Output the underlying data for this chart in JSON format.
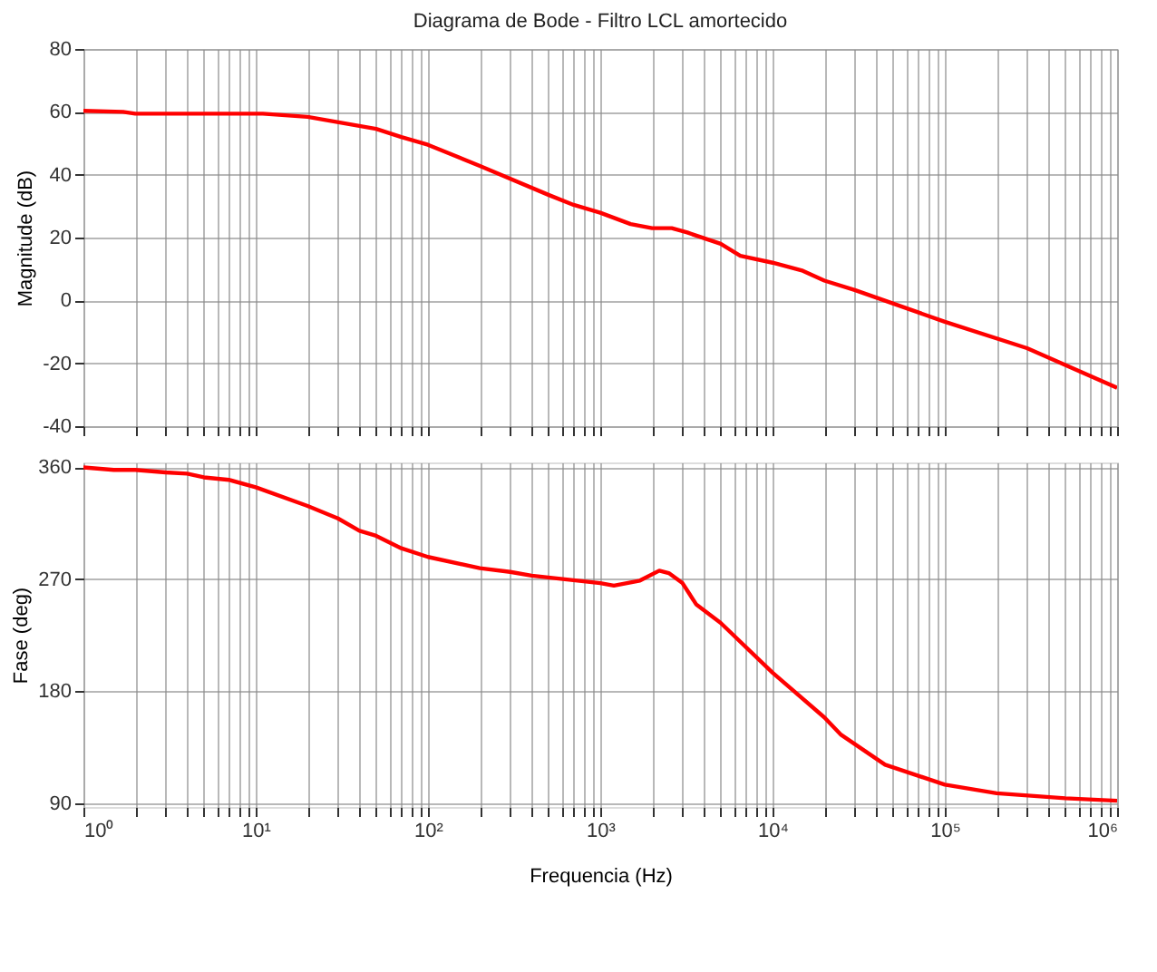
{
  "chart_data": [
    {
      "type": "line",
      "title": "Diagrama de Bode - Filtro LCL amortecido",
      "ylabel": "Magnitude (dB)",
      "log": "x",
      "grid": true,
      "tick_labels": "y",
      "line_style": "solid",
      "marker": "none",
      "x": [
        1,
        1.7,
        2,
        10,
        11,
        20,
        50,
        70,
        100,
        200,
        500,
        700,
        1000,
        1500,
        2000,
        2600,
        3200,
        5000,
        6500,
        10000,
        15000,
        20000,
        30000,
        100000,
        300000,
        1000000
      ],
      "series": [
        {
          "color": "#ff0000",
          "values": [
            60.3,
            60,
            59.4,
            59.4,
            59.4,
            58.4,
            54.6,
            52,
            49.5,
            42.8,
            33.6,
            30.4,
            27.9,
            24.3,
            23,
            23,
            21.6,
            18,
            14.2,
            12,
            9.4,
            6.3,
            3.3,
            -6.8,
            -15.2,
            -27.8
          ]
        }
      ],
      "xlim": [
        1,
        1000000
      ],
      "ylim": [
        -40,
        80
      ],
      "yticks": [
        -40,
        -20,
        0,
        20,
        40,
        60,
        80
      ],
      "xticks": [
        {
          "value": 1,
          "label": null
        },
        {
          "value": 2,
          "label": null
        },
        {
          "value": 3,
          "label": null
        },
        {
          "value": 4,
          "label": null
        },
        {
          "value": 5,
          "label": null
        },
        {
          "value": 6,
          "label": null
        },
        {
          "value": 7,
          "label": null
        },
        {
          "value": 8,
          "label": null
        },
        {
          "value": 9,
          "label": null
        },
        {
          "value": 10,
          "label": null
        },
        {
          "value": 20,
          "label": null
        },
        {
          "value": 30,
          "label": null
        },
        {
          "value": 40,
          "label": null
        },
        {
          "value": 50,
          "label": null
        },
        {
          "value": 60,
          "label": null
        },
        {
          "value": 70,
          "label": null
        },
        {
          "value": 80,
          "label": null
        },
        {
          "value": 90,
          "label": null
        },
        {
          "value": 100,
          "label": null
        },
        {
          "value": 200,
          "label": null
        },
        {
          "value": 300,
          "label": null
        },
        {
          "value": 400,
          "label": null
        },
        {
          "value": 500,
          "label": null
        },
        {
          "value": 600,
          "label": null
        },
        {
          "value": 700,
          "label": null
        },
        {
          "value": 800,
          "label": null
        },
        {
          "value": 900,
          "label": null
        },
        {
          "value": 1000,
          "label": null
        },
        {
          "value": 2000,
          "label": null
        },
        {
          "value": 3000,
          "label": null
        },
        {
          "value": 4000,
          "label": null
        },
        {
          "value": 5000,
          "label": null
        },
        {
          "value": 6000,
          "label": null
        },
        {
          "value": 7000,
          "label": null
        },
        {
          "value": 8000,
          "label": null
        },
        {
          "value": 9000,
          "label": null
        },
        {
          "value": 10000,
          "label": null
        },
        {
          "value": 20000,
          "label": null
        },
        {
          "value": 30000,
          "label": null
        },
        {
          "value": 40000,
          "label": null
        },
        {
          "value": 50000,
          "label": null
        },
        {
          "value": 60000,
          "label": null
        },
        {
          "value": 70000,
          "label": null
        },
        {
          "value": 80000,
          "label": null
        },
        {
          "value": 90000,
          "label": null
        },
        {
          "value": 100000,
          "label": null
        },
        {
          "value": 200000,
          "label": null
        },
        {
          "value": 300000,
          "label": null
        },
        {
          "value": 400000,
          "label": null
        },
        {
          "value": 500000,
          "label": null
        },
        {
          "value": 600000,
          "label": null
        },
        {
          "value": 700000,
          "label": null
        },
        {
          "value": 800000,
          "label": null
        },
        {
          "value": 900000,
          "label": null
        },
        {
          "value": 1000000,
          "label": null
        }
      ]
    },
    {
      "type": "line",
      "xlabel": "Frequencia  (Hz)",
      "ylabel": "Fase (deg)",
      "log": "x",
      "grid": true,
      "line_style": "solid",
      "marker": "none",
      "x": [
        1,
        1.5,
        2,
        3,
        4,
        5,
        7,
        10,
        20,
        30,
        40,
        50,
        70,
        100,
        200,
        300,
        400,
        1000,
        1200,
        1700,
        2200,
        2500,
        3000,
        3600,
        5000,
        10000,
        20000,
        25000,
        45000,
        100000,
        200000,
        500000,
        1000000
      ],
      "series": [
        {
          "color": "#ff0000",
          "values": [
            360,
            358,
            358,
            356,
            355,
            352,
            350,
            344,
            329,
            319,
            309,
            305,
            295,
            288,
            279,
            276,
            273,
            267,
            265,
            269,
            277,
            275,
            267,
            250,
            235,
            195,
            159,
            145,
            121,
            105,
            98,
            94,
            92
          ]
        }
      ],
      "xlim": [
        1,
        1000000
      ],
      "ylim": [
        87,
        364
      ],
      "yticks": [
        90,
        180,
        270,
        360
      ],
      "xticks": [
        {
          "value": 1,
          "label": "10⁰"
        },
        {
          "value": 2,
          "label": null
        },
        {
          "value": 3,
          "label": null
        },
        {
          "value": 4,
          "label": null
        },
        {
          "value": 5,
          "label": null
        },
        {
          "value": 6,
          "label": null
        },
        {
          "value": 7,
          "label": null
        },
        {
          "value": 8,
          "label": null
        },
        {
          "value": 9,
          "label": null
        },
        {
          "value": 10,
          "label": "10¹"
        },
        {
          "value": 20,
          "label": null
        },
        {
          "value": 30,
          "label": null
        },
        {
          "value": 40,
          "label": null
        },
        {
          "value": 50,
          "label": null
        },
        {
          "value": 60,
          "label": null
        },
        {
          "value": 70,
          "label": null
        },
        {
          "value": 80,
          "label": null
        },
        {
          "value": 90,
          "label": null
        },
        {
          "value": 100,
          "label": "10²"
        },
        {
          "value": 200,
          "label": null
        },
        {
          "value": 300,
          "label": null
        },
        {
          "value": 400,
          "label": null
        },
        {
          "value": 500,
          "label": null
        },
        {
          "value": 600,
          "label": null
        },
        {
          "value": 700,
          "label": null
        },
        {
          "value": 800,
          "label": null
        },
        {
          "value": 900,
          "label": null
        },
        {
          "value": 1000,
          "label": "10³"
        },
        {
          "value": 2000,
          "label": null
        },
        {
          "value": 3000,
          "label": null
        },
        {
          "value": 4000,
          "label": null
        },
        {
          "value": 5000,
          "label": null
        },
        {
          "value": 6000,
          "label": null
        },
        {
          "value": 7000,
          "label": null
        },
        {
          "value": 8000,
          "label": null
        },
        {
          "value": 9000,
          "label": null
        },
        {
          "value": 10000,
          "label": "10⁴"
        },
        {
          "value": 20000,
          "label": null
        },
        {
          "value": 30000,
          "label": null
        },
        {
          "value": 40000,
          "label": null
        },
        {
          "value": 50000,
          "label": null
        },
        {
          "value": 60000,
          "label": null
        },
        {
          "value": 70000,
          "label": null
        },
        {
          "value": 80000,
          "label": null
        },
        {
          "value": 90000,
          "label": null
        },
        {
          "value": 100000,
          "label": "10⁵"
        },
        {
          "value": 200000,
          "label": null
        },
        {
          "value": 300000,
          "label": null
        },
        {
          "value": 400000,
          "label": null
        },
        {
          "value": 500000,
          "label": null
        },
        {
          "value": 600000,
          "label": null
        },
        {
          "value": 700000,
          "label": null
        },
        {
          "value": 800000,
          "label": null
        },
        {
          "value": 900000,
          "label": null
        },
        {
          "value": 1000000,
          "label": "10⁶"
        }
      ]
    }
  ]
}
